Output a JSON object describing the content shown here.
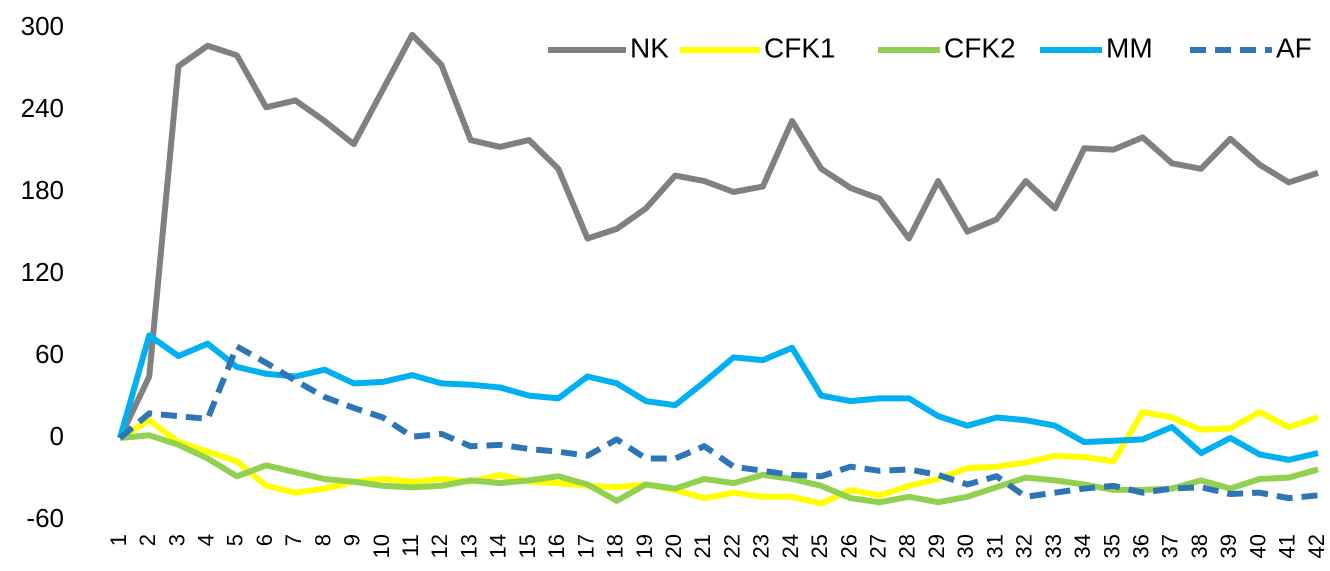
{
  "chart_data": {
    "type": "line",
    "categories": [
      "1",
      "2",
      "3",
      "4",
      "5",
      "6",
      "7",
      "8",
      "9",
      "10",
      "11",
      "12",
      "13",
      "14",
      "15",
      "16",
      "17",
      "18",
      "19",
      "20",
      "21",
      "22",
      "23",
      "24",
      "25",
      "26",
      "27",
      "28",
      "29",
      "30",
      "31",
      "32",
      "33",
      "34",
      "35",
      "36",
      "37",
      "38",
      "39",
      "40",
      "41",
      "42"
    ],
    "series": [
      {
        "name": "NK",
        "color": "#808080",
        "style": "solid",
        "values": [
          0,
          45,
          272,
          287,
          280,
          242,
          247,
          232,
          215,
          255,
          295,
          273,
          218,
          213,
          218,
          197,
          146,
          153,
          168,
          192,
          188,
          180,
          184,
          232,
          197,
          183,
          175,
          146,
          188,
          151,
          160,
          188,
          168,
          212,
          211,
          220,
          201,
          197,
          219,
          200,
          187,
          194
        ]
      },
      {
        "name": "CFK1",
        "color": "#ffff00",
        "style": "solid",
        "values": [
          0,
          13,
          -3,
          -10,
          -17,
          -35,
          -40,
          -37,
          -32,
          -30,
          -32,
          -30,
          -32,
          -27,
          -32,
          -33,
          -35,
          -36,
          -34,
          -38,
          -44,
          -40,
          -43,
          -43,
          -48,
          -38,
          -42,
          -35,
          -30,
          -22,
          -21,
          -18,
          -13,
          -14,
          -17,
          19,
          15,
          6,
          7,
          19,
          8,
          15
        ]
      },
      {
        "name": "CFK2",
        "color": "#92d050",
        "style": "solid",
        "values": [
          0,
          2,
          -5,
          -15,
          -28,
          -20,
          -25,
          -30,
          -32,
          -35,
          -36,
          -35,
          -31,
          -33,
          -31,
          -28,
          -34,
          -46,
          -34,
          -37,
          -30,
          -33,
          -27,
          -30,
          -35,
          -44,
          -47,
          -43,
          -47,
          -43,
          -36,
          -29,
          -31,
          -34,
          -38,
          -38,
          -37,
          -31,
          -37,
          -30,
          -29,
          -23
        ]
      },
      {
        "name": "MM",
        "color": "#00b0f0",
        "style": "solid",
        "values": [
          0,
          75,
          60,
          69,
          52,
          47,
          45,
          50,
          40,
          41,
          46,
          40,
          39,
          37,
          31,
          29,
          45,
          40,
          27,
          24,
          41,
          59,
          57,
          66,
          31,
          27,
          29,
          29,
          16,
          9,
          15,
          13,
          9,
          -3,
          -2,
          -1,
          8,
          -11,
          0,
          -12,
          -16,
          -11
        ]
      },
      {
        "name": "AF",
        "color": "#2e75b6",
        "style": "dashed",
        "values": [
          0,
          18,
          16,
          14,
          67,
          55,
          42,
          30,
          22,
          15,
          1,
          3,
          -6,
          -5,
          -8,
          -10,
          -13,
          -1,
          -15,
          -15,
          -6,
          -21,
          -24,
          -27,
          -28,
          -21,
          -24,
          -23,
          -27,
          -34,
          -28,
          -43,
          -40,
          -37,
          -35,
          -40,
          -37,
          -36,
          -41,
          -40,
          -44,
          -42
        ]
      }
    ],
    "ylim": [
      -60,
      300
    ],
    "yticks": [
      -60,
      0,
      60,
      120,
      180,
      240,
      300
    ],
    "grid": false,
    "legend": "top-right"
  }
}
